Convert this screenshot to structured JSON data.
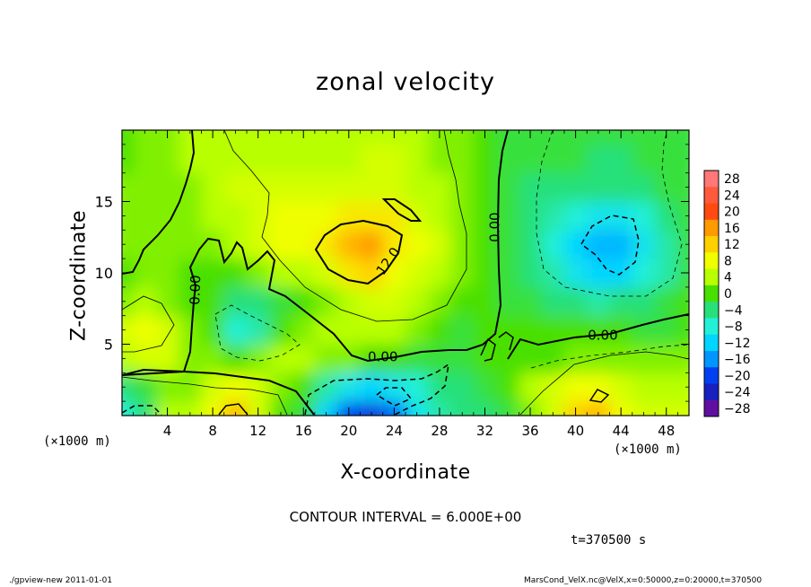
{
  "page": {
    "contour_interval": "CONTOUR INTERVAL = 6.000E+00",
    "time_label": "t=370500 s",
    "footer_left": "./gpview-new   2011-01-01",
    "footer_right": "MarsCond_VelX.nc@VelX,x=0:50000,z=0:20000,t=370500"
  },
  "chart_data": {
    "type": "heatmap",
    "title": "zonal velocity",
    "xlabel": "X-coordinate",
    "ylabel": "Z-coordinate",
    "x_unit": "(×1000 m)",
    "y_unit": "(×1000 m)",
    "xlim": [
      0,
      50
    ],
    "ylim": [
      0,
      20
    ],
    "x_ticks": [
      4,
      8,
      12,
      16,
      20,
      24,
      28,
      32,
      36,
      40,
      44,
      48
    ],
    "y_ticks": [
      5,
      10,
      15
    ],
    "colorbar": {
      "levels": [
        28,
        24,
        20,
        16,
        12,
        8,
        4,
        0,
        -4,
        -8,
        -12,
        -16,
        -20,
        -24,
        -28
      ],
      "labels": [
        "28",
        "24",
        "20",
        "16",
        "12",
        "8",
        "4",
        "0",
        "−4",
        "−8",
        "−12",
        "−16",
        "−20",
        "−24",
        "−28"
      ],
      "colors": [
        "#ff7777",
        "#ff5a3c",
        "#ff4a10",
        "#ff9a00",
        "#ffd000",
        "#f0ff00",
        "#b8ff00",
        "#48e000",
        "#28e07a",
        "#24f0d8",
        "#00d6ff",
        "#0096ff",
        "#0040f0",
        "#1820c0",
        "#6010a0"
      ]
    },
    "field_samples": {
      "x_km": [
        0,
        2,
        4,
        6,
        8,
        10,
        12,
        14,
        16,
        18,
        20,
        22,
        24,
        26,
        28,
        30,
        32,
        34,
        36,
        38,
        40,
        42,
        44,
        46,
        48,
        50
      ],
      "z_km": [
        0,
        2,
        4,
        6,
        8,
        10,
        12,
        14,
        16,
        18,
        20
      ],
      "values": [
        [
          -8,
          -4,
          4,
          4,
          8,
          14,
          6,
          0,
          -2,
          -12,
          -20,
          -22,
          -18,
          -10,
          -6,
          -4,
          -4,
          -2,
          2,
          6,
          12,
          14,
          8,
          6,
          6,
          6
        ],
        [
          -4,
          -2,
          2,
          2,
          6,
          8,
          6,
          2,
          0,
          -6,
          -10,
          -12,
          -10,
          -8,
          -4,
          -4,
          -2,
          0,
          4,
          6,
          8,
          8,
          6,
          4,
          4,
          4
        ],
        [
          4,
          6,
          6,
          2,
          2,
          0,
          2,
          4,
          4,
          2,
          2,
          0,
          0,
          -2,
          -2,
          -2,
          0,
          0,
          0,
          0,
          2,
          2,
          2,
          2,
          2,
          2
        ],
        [
          6,
          8,
          6,
          2,
          0,
          -8,
          -6,
          0,
          2,
          4,
          4,
          4,
          4,
          2,
          0,
          -2,
          0,
          0,
          0,
          0,
          0,
          0,
          0,
          -2,
          -2,
          0
        ],
        [
          2,
          4,
          2,
          0,
          0,
          -4,
          -4,
          -2,
          0,
          2,
          4,
          6,
          6,
          4,
          2,
          0,
          0,
          -2,
          -2,
          -4,
          -4,
          -6,
          -4,
          -4,
          -2,
          0
        ],
        [
          0,
          2,
          2,
          0,
          0,
          0,
          2,
          4,
          4,
          6,
          10,
          12,
          8,
          6,
          4,
          2,
          0,
          -2,
          -4,
          -6,
          -10,
          -12,
          -12,
          -8,
          -6,
          -2
        ],
        [
          2,
          2,
          2,
          2,
          2,
          4,
          6,
          8,
          8,
          10,
          14,
          16,
          10,
          8,
          6,
          2,
          0,
          -2,
          -4,
          -8,
          -12,
          -14,
          -14,
          -10,
          -6,
          -2
        ],
        [
          2,
          2,
          2,
          2,
          4,
          4,
          6,
          8,
          8,
          8,
          10,
          10,
          10,
          6,
          4,
          2,
          0,
          -2,
          -4,
          -6,
          -8,
          -10,
          -10,
          -8,
          -4,
          -2
        ],
        [
          2,
          2,
          2,
          2,
          4,
          6,
          6,
          6,
          6,
          6,
          6,
          6,
          6,
          4,
          4,
          2,
          0,
          -2,
          -4,
          -4,
          -4,
          -4,
          -4,
          -4,
          -2,
          -2
        ],
        [
          0,
          2,
          2,
          4,
          4,
          4,
          4,
          4,
          4,
          4,
          4,
          6,
          6,
          4,
          2,
          2,
          0,
          -2,
          -2,
          -2,
          -2,
          -4,
          -4,
          -2,
          -2,
          -2
        ],
        [
          0,
          2,
          2,
          4,
          4,
          4,
          4,
          4,
          4,
          4,
          4,
          4,
          4,
          4,
          2,
          2,
          0,
          -2,
          -2,
          -2,
          -2,
          -2,
          -2,
          -2,
          -2,
          -2
        ]
      ]
    },
    "contour_labels": [
      {
        "text": "12.0",
        "x": 23.5,
        "z": 10.8,
        "angle": -55
      },
      {
        "text": "0.00",
        "x": 6.5,
        "z": 8.8,
        "angle": -88
      },
      {
        "text": "0.00",
        "x": 23.0,
        "z": 4.1,
        "angle": 0
      },
      {
        "text": "0.00",
        "x": 32.9,
        "z": 13.2,
        "angle": -90
      },
      {
        "text": "0.00",
        "x": 42.4,
        "z": 5.6,
        "angle": 0
      }
    ]
  }
}
